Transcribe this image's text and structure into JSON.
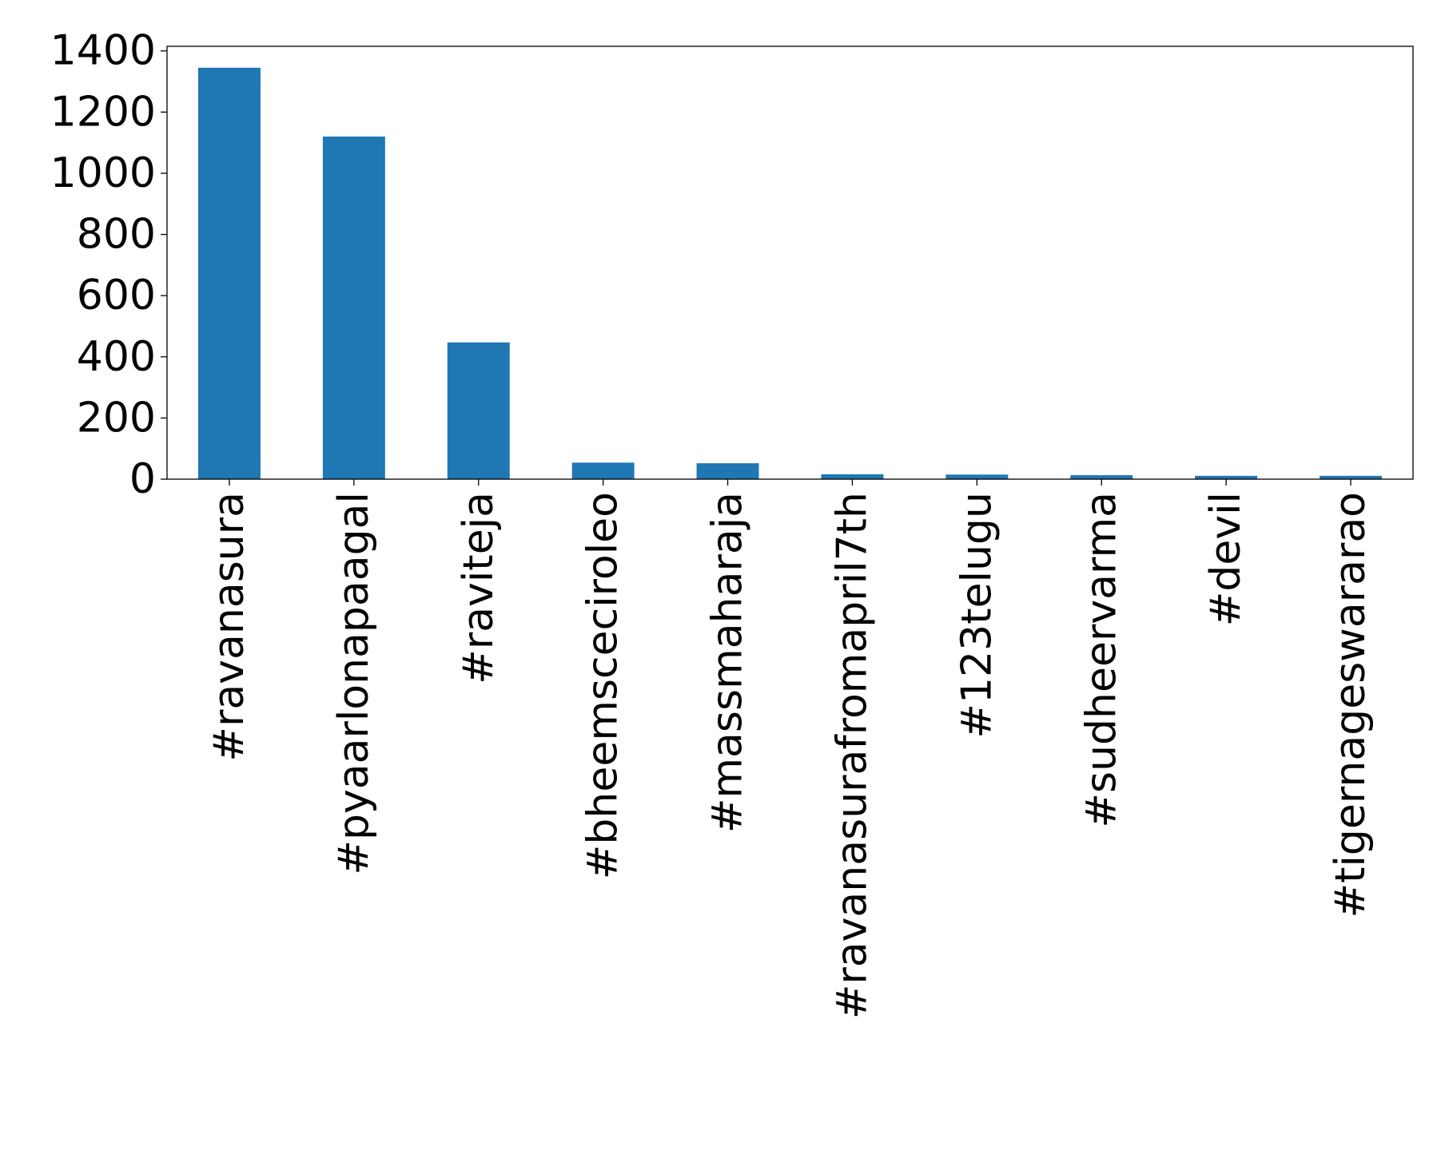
{
  "chart_data": {
    "type": "bar",
    "title": "",
    "xlabel": "",
    "ylabel": "",
    "categories": [
      "#ravanasura",
      "#pyaarlonapaagal",
      "#raviteja",
      "#bheemsceciroleo",
      "#massmaharaja",
      "#ravanasurafromapril7th",
      "#123telugu",
      "#sudheervarma",
      "#devil",
      "#tigernageswararao"
    ],
    "values": [
      1345,
      1120,
      447,
      54,
      52,
      16,
      15,
      13,
      11,
      11
    ],
    "ylim": [
      0,
      1415
    ],
    "yticks": [
      0,
      200,
      400,
      600,
      800,
      1000,
      1200,
      1400
    ],
    "grid": false,
    "legend": "none",
    "colors": {
      "bar": "#1f77b4"
    }
  }
}
